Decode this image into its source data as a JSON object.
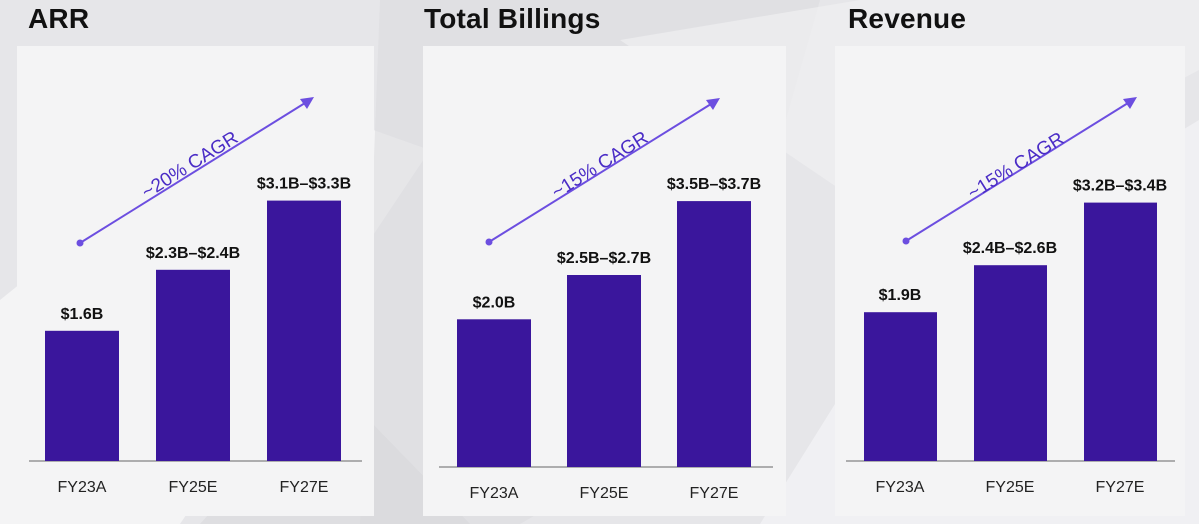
{
  "colors": {
    "bar": "#3a169c",
    "arrow": "#6c4ee0",
    "cagr_text": "#4a2cc6",
    "card": "#f4f4f5",
    "axis": "#666666"
  },
  "chart_data": [
    {
      "type": "bar",
      "title": "ARR",
      "categories": [
        "FY23A",
        "FY25E",
        "FY27E"
      ],
      "values": [
        1.6,
        2.35,
        3.2
      ],
      "value_labels": [
        "$1.6B",
        "$2.3B–$2.4B",
        "$3.1B–$3.3B"
      ],
      "annotation": "~20% CAGR",
      "unit": "$B",
      "ylim": [
        0,
        5.1
      ]
    },
    {
      "type": "bar",
      "title": "Total Billings",
      "categories": [
        "FY23A",
        "FY25E",
        "FY27E"
      ],
      "values": [
        2.0,
        2.6,
        3.6
      ],
      "value_labels": [
        "$2.0B",
        "$2.5B–$2.7B",
        "$3.5B–$3.7B"
      ],
      "annotation": "~15% CAGR",
      "unit": "$B",
      "ylim": [
        0,
        5.7
      ]
    },
    {
      "type": "bar",
      "title": "Revenue",
      "categories": [
        "FY23A",
        "FY25E",
        "FY27E"
      ],
      "values": [
        1.9,
        2.5,
        3.3
      ],
      "value_labels": [
        "$1.9B",
        "$2.4B–$2.6B",
        "$3.2B–$3.4B"
      ],
      "annotation": "~15% CAGR",
      "unit": "$B",
      "ylim": [
        0,
        5.3
      ]
    }
  ]
}
